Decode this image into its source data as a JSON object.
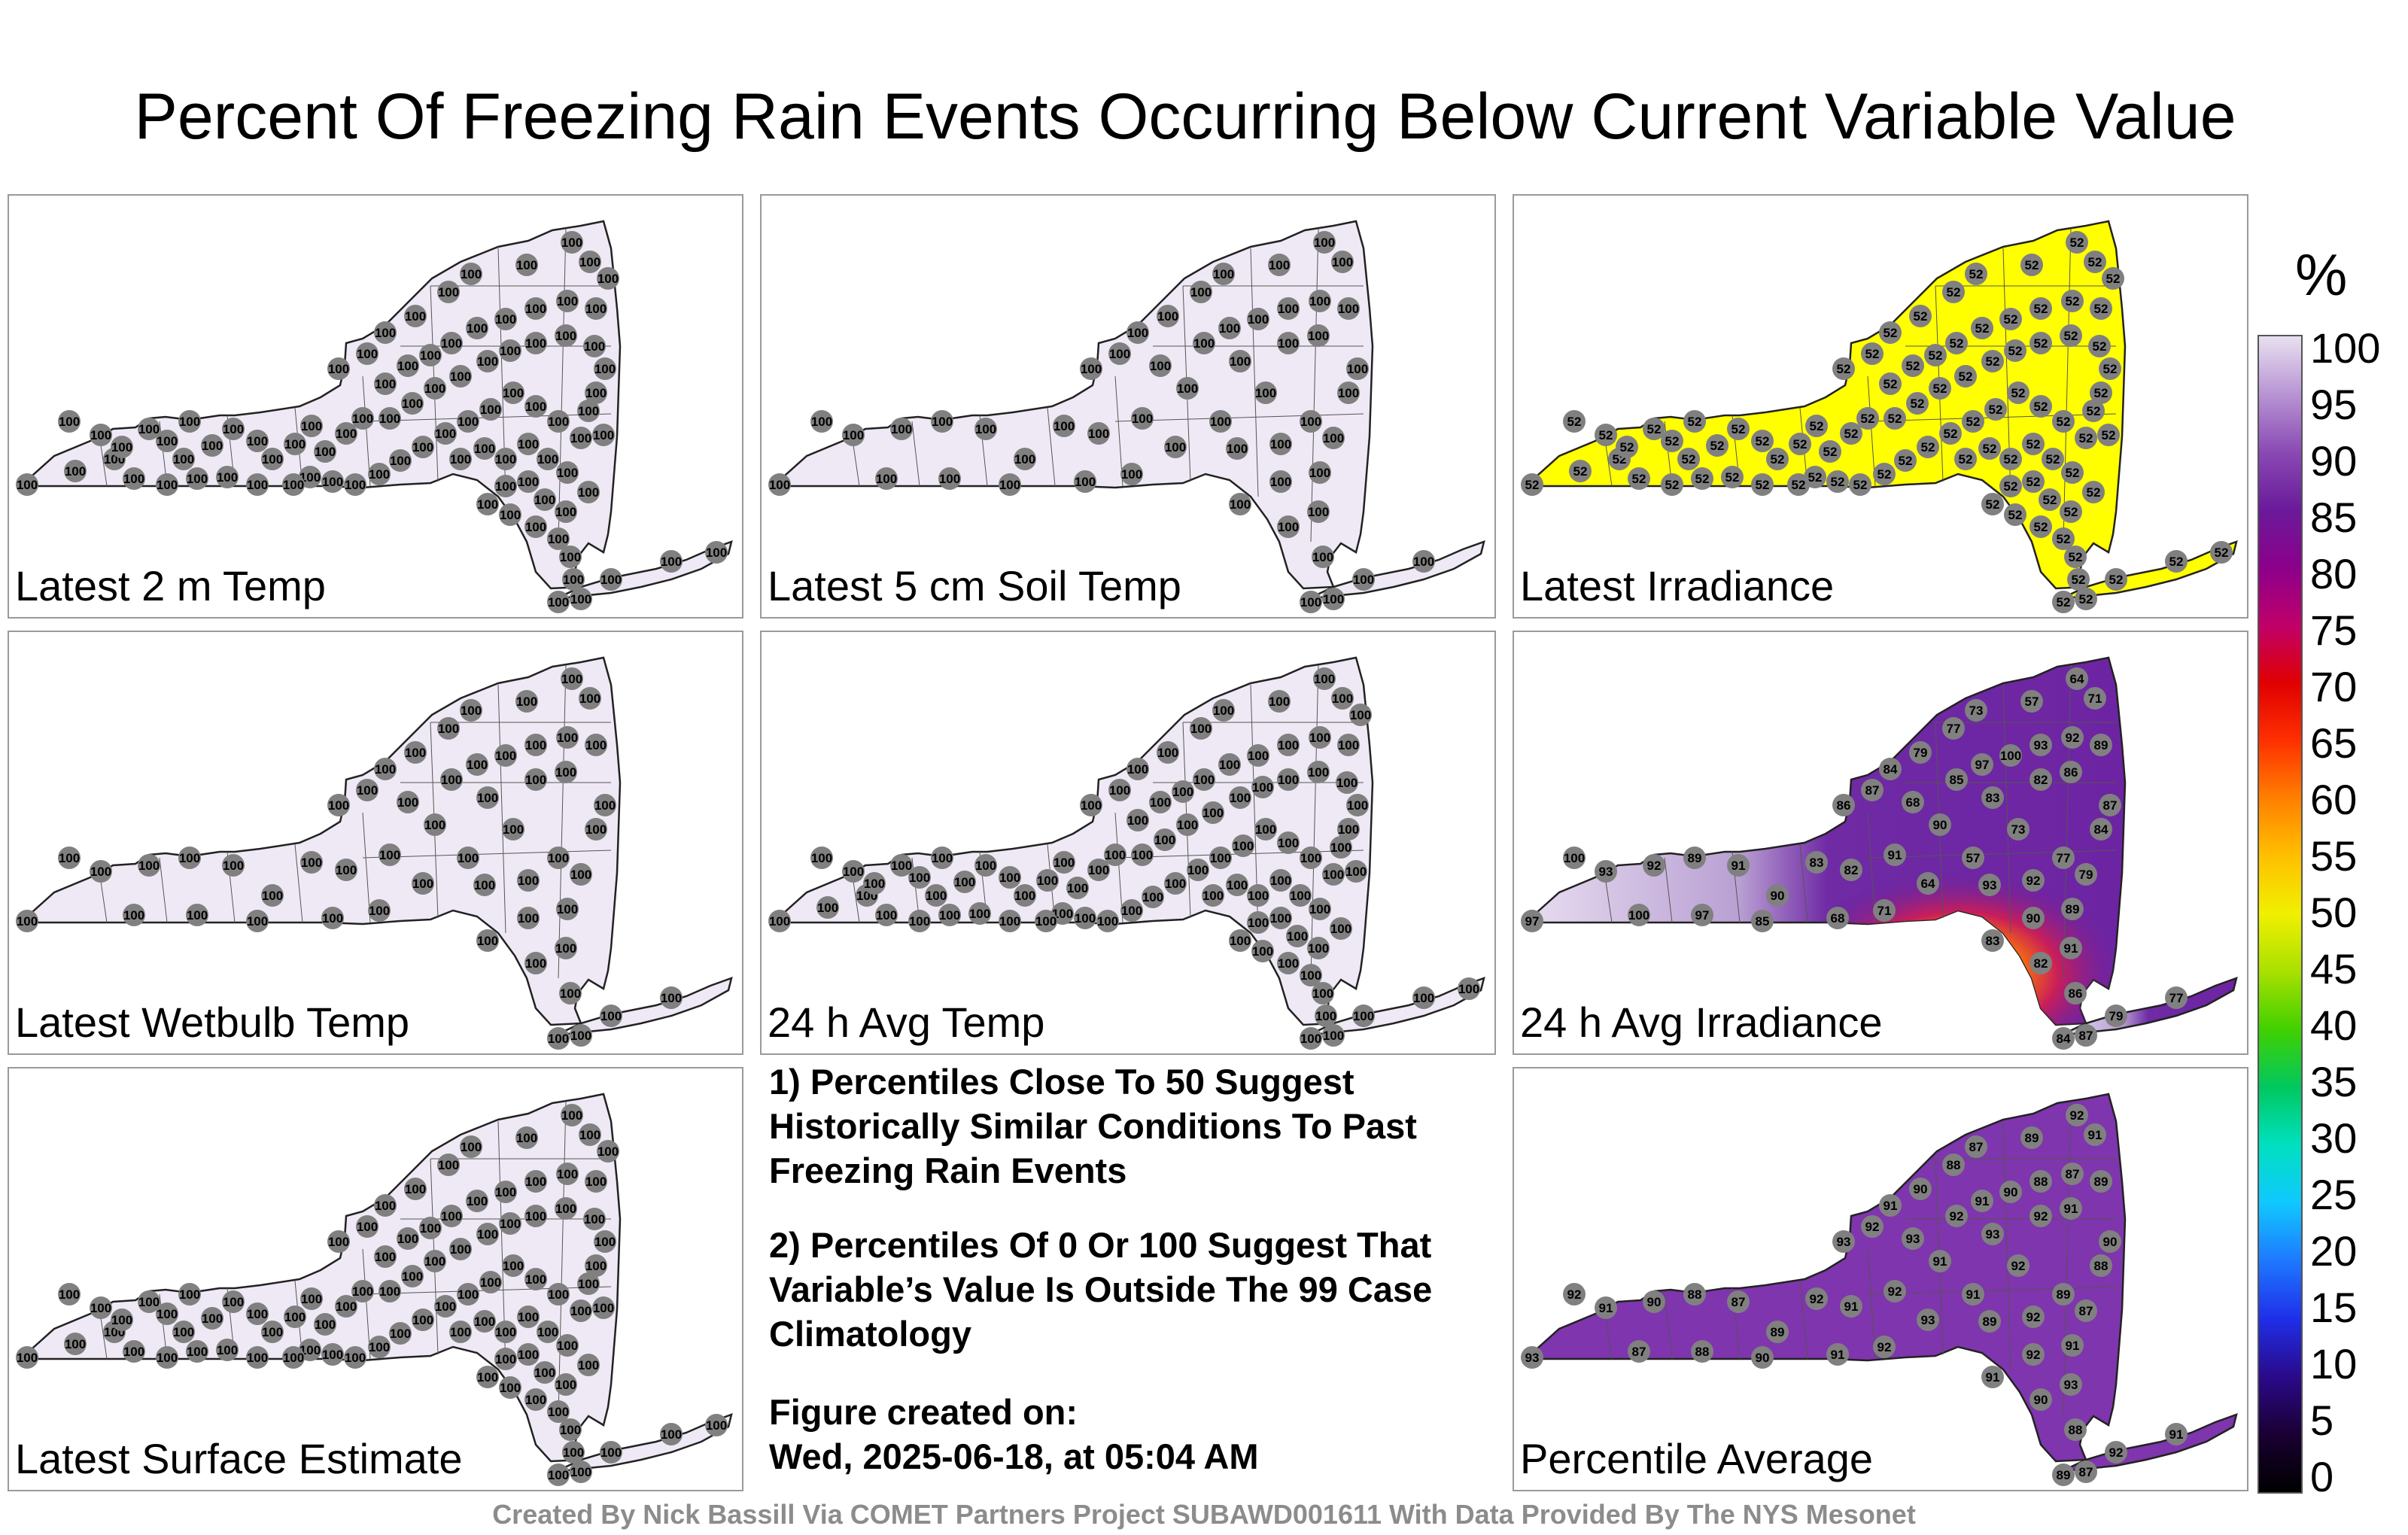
{
  "title": "Percent Of Freezing Rain Events Occurring Below Current Variable Value",
  "colors": {
    "uniform100": "#f0ebf5",
    "irradiance52": "#ffff00",
    "purple": "#7b2fa8",
    "station": "#808080"
  },
  "panels": [
    {
      "label": "Latest 2 m Temp",
      "fill": "lavender",
      "value": "100"
    },
    {
      "label": "Latest 5 cm Soil Temp",
      "fill": "lavender",
      "value": "100"
    },
    {
      "label": "Latest Irradiance",
      "fill": "yellow",
      "value": "52"
    },
    {
      "label": "Latest Wetbulb Temp",
      "fill": "lavender",
      "value": "100"
    },
    {
      "label": "24 h Avg Temp",
      "fill": "lavender",
      "value": "100"
    },
    {
      "label": "24 h Avg Irradiance",
      "fill": "mixed",
      "values": [
        "97",
        "100",
        "93",
        "92",
        "89",
        "91",
        "90",
        "83",
        "82",
        "86",
        "87",
        "84",
        "79",
        "77",
        "73",
        "57",
        "64",
        "71",
        "68",
        "85"
      ]
    },
    {
      "label": "Latest Surface Estimate",
      "fill": "lavender",
      "value": "100"
    },
    {
      "label": "Percentile Average",
      "fill": "purple",
      "values": [
        "93",
        "92",
        "91",
        "90",
        "88",
        "87",
        "89",
        "92",
        "91"
      ]
    }
  ],
  "notes": {
    "n1": "1) Percentiles Close To 50 Suggest Historically Similar Conditions To Past Freezing Rain Events",
    "n2": "2) Percentiles Of 0 Or 100 Suggest That Variable’s Value Is Outside The 99 Case Climatology",
    "created_label": "Figure created on:",
    "created_value": "Wed, 2025-06-18, at 05:04 AM"
  },
  "credit": "Created By Nick Bassill Via COMET Partners Project SUBAWD001611 With Data Provided By The NYS Mesonet",
  "colorbar": {
    "unit": "%",
    "ticks": [
      "100",
      "95",
      "90",
      "85",
      "80",
      "75",
      "70",
      "65",
      "60",
      "55",
      "50",
      "45",
      "40",
      "35",
      "30",
      "25",
      "20",
      "15",
      "10",
      "5",
      "0"
    ]
  }
}
